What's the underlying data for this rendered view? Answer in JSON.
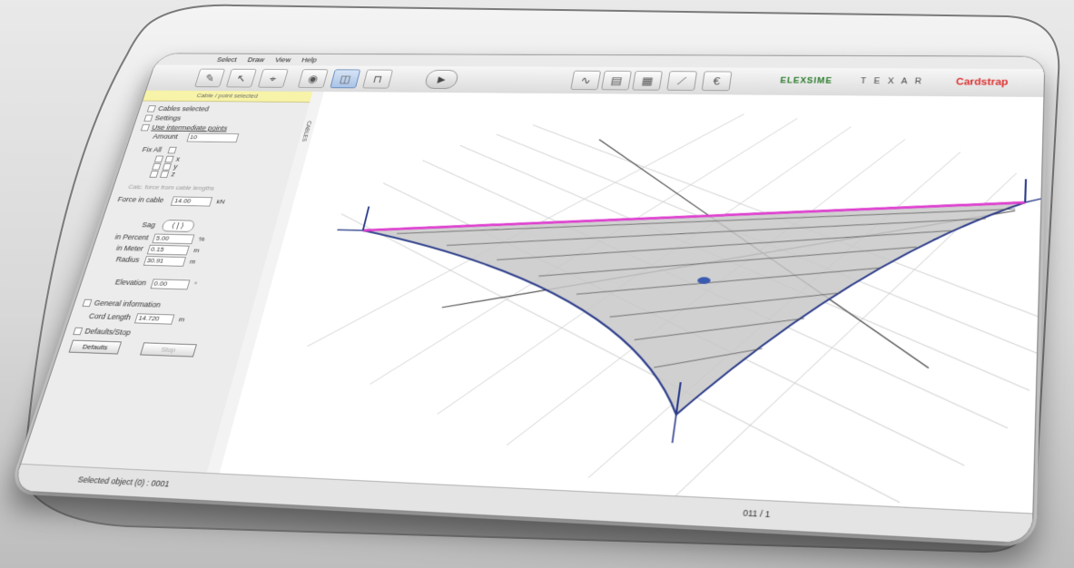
{
  "menu": [
    "Select",
    "Draw",
    "View",
    "Help"
  ],
  "brand": {
    "left": "ELEXSIME",
    "mid": "T E X A R",
    "right": "Cardstrap",
    "left_color": "#2a7a2a",
    "right_color": "#dd3333"
  },
  "toolbar": {
    "icons": [
      "pencil-icon",
      "pointer-icon",
      "vertex-icon",
      "eye-icon",
      "double-panel-icon",
      "lock-icon"
    ],
    "play_label": "▶",
    "right_icons": [
      "wave-icon",
      "layers-icon",
      "grid-icon",
      "measure-icon",
      "euro-icon"
    ]
  },
  "panel": {
    "header": "Cable / point selected",
    "cables_selected": "Cables selected",
    "settings": "Settings",
    "use_intermediate": "Use intermediate points",
    "amount_label": "Amount",
    "amount_value": "10",
    "fix_all": "Fix All",
    "xyz": [
      "x",
      "y",
      "z"
    ],
    "calc_note": "Calc. force from cable lengths",
    "force_label": "Force in cable",
    "force_value": "14.00",
    "force_unit": "kN",
    "sag_label": "Sag",
    "in_percent_label": "in Percent",
    "in_percent_value": "5.00",
    "in_percent_unit": "%",
    "in_meter_label": "in Meter",
    "in_meter_value": "0.15",
    "in_meter_unit": "m",
    "radius_label": "Radius",
    "radius_value": "30.91",
    "radius_unit": "m",
    "elevation_label": "Elevation",
    "elevation_value": "0.00",
    "elevation_unit": "°",
    "general_info": "General information",
    "cord_length_label": "Cord Length",
    "cord_length_value": "14.720",
    "cord_length_unit": "m",
    "defaults_stop": "Defaults/Stop",
    "defaults_btn": "Defaults",
    "stop_btn": "Stop"
  },
  "sidestrip_label": "CABLES",
  "status": {
    "left": "Selected object (0) : 0001",
    "right": "011 / 1"
  }
}
